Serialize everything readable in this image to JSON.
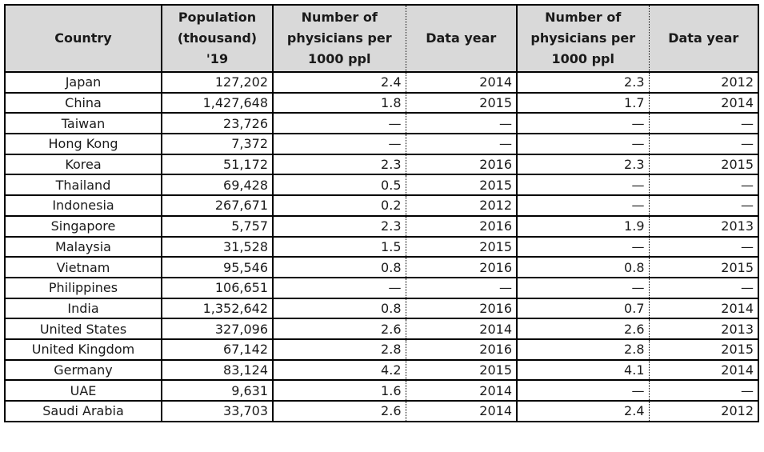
{
  "colors": {
    "header_background": "#d9d9d9",
    "border": "#000000",
    "text": "#1a1a1a",
    "page_background": "#ffffff"
  },
  "header_labels": {
    "country": "Country",
    "population": "Population\n(thousand)\n'19",
    "physicians_1": "Number of\nphysicians per\n1000 ppl",
    "data_year_1": "Data year",
    "physicians_2": "Number of\nphysicians per\n1000 ppl",
    "data_year_2": "Data year"
  },
  "missing_value_marker": "—",
  "chart_data": {
    "type": "table",
    "columns": [
      "Country",
      "Population (thousand) '19",
      "Number of physicians per 1000 ppl",
      "Data year",
      "Number of physicians per 1000 ppl",
      "Data year"
    ],
    "rows": [
      [
        "Japan",
        "127,202",
        "2.4",
        "2014",
        "2.3",
        "2012"
      ],
      [
        "China",
        "1,427,648",
        "1.8",
        "2015",
        "1.7",
        "2014"
      ],
      [
        "Taiwan",
        "23,726",
        "—",
        "—",
        "—",
        "—"
      ],
      [
        "Hong Kong",
        "7,372",
        "—",
        "—",
        "—",
        "—"
      ],
      [
        "Korea",
        "51,172",
        "2.3",
        "2016",
        "2.3",
        "2015"
      ],
      [
        "Thailand",
        "69,428",
        "0.5",
        "2015",
        "—",
        "—"
      ],
      [
        "Indonesia",
        "267,671",
        "0.2",
        "2012",
        "—",
        "—"
      ],
      [
        "Singapore",
        "5,757",
        "2.3",
        "2016",
        "1.9",
        "2013"
      ],
      [
        "Malaysia",
        "31,528",
        "1.5",
        "2015",
        "—",
        "—"
      ],
      [
        "Vietnam",
        "95,546",
        "0.8",
        "2016",
        "0.8",
        "2015"
      ],
      [
        "Philippines",
        "106,651",
        "—",
        "—",
        "—",
        "—"
      ],
      [
        "India",
        "1,352,642",
        "0.8",
        "2016",
        "0.7",
        "2014"
      ],
      [
        "United States",
        "327,096",
        "2.6",
        "2014",
        "2.6",
        "2013"
      ],
      [
        "United Kingdom",
        "67,142",
        "2.8",
        "2016",
        "2.8",
        "2015"
      ],
      [
        "Germany",
        "83,124",
        "4.2",
        "2015",
        "4.1",
        "2014"
      ],
      [
        "UAE",
        "9,631",
        "1.6",
        "2014",
        "—",
        "—"
      ],
      [
        "Saudi Arabia",
        "33,703",
        "2.6",
        "2014",
        "2.4",
        "2012"
      ]
    ]
  }
}
